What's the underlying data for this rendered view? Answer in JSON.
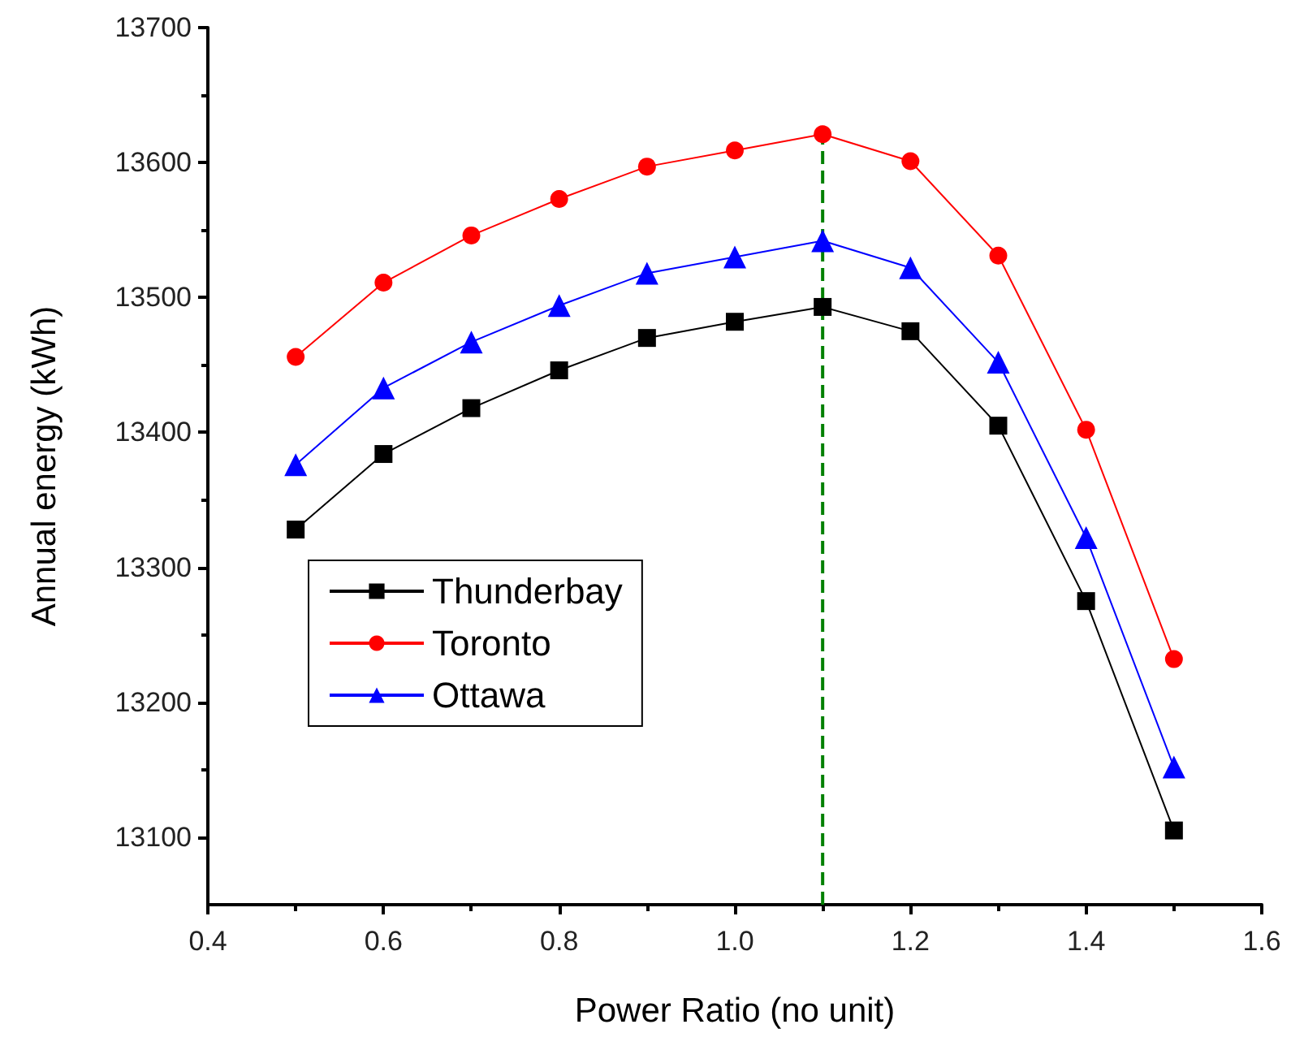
{
  "chart_data": {
    "type": "line",
    "xlabel": "Power Ratio (no unit)",
    "ylabel": "Annual energy (kWh)",
    "x": [
      0.5,
      0.6,
      0.7,
      0.8,
      0.9,
      1.0,
      1.1,
      1.2,
      1.3,
      1.4,
      1.5
    ],
    "series": [
      {
        "name": "Thunderbay",
        "color": "#000000",
        "marker": "square",
        "values": [
          13328,
          13384,
          13418,
          13446,
          13470,
          13482,
          13493,
          13475,
          13405,
          13275,
          13105
        ]
      },
      {
        "name": "Toronto",
        "color": "#ff0000",
        "marker": "circle",
        "values": [
          13456,
          13511,
          13546,
          13573,
          13597,
          13609,
          13621,
          13601,
          13531,
          13402,
          13232
        ]
      },
      {
        "name": "Ottawa",
        "color": "#0000ff",
        "marker": "triangle",
        "values": [
          13376,
          13433,
          13467,
          13494,
          13518,
          13530,
          13542,
          13522,
          13452,
          13322,
          13152
        ]
      }
    ],
    "xlim": [
      0.4,
      1.6
    ],
    "xticks": [
      0.4,
      0.6,
      0.8,
      {
        "value": 1.0,
        "label": "1.0"
      },
      1.2,
      1.4,
      1.6
    ],
    "ylim": [
      13050,
      13700
    ],
    "yticks": [
      13100,
      13200,
      13300,
      13400,
      13500,
      13600,
      13700
    ],
    "ref_lines": [
      {
        "axis": "x",
        "value": 1.1,
        "color": "#008000",
        "line_style": "dashed"
      }
    ],
    "grid": false,
    "legend": "left"
  }
}
